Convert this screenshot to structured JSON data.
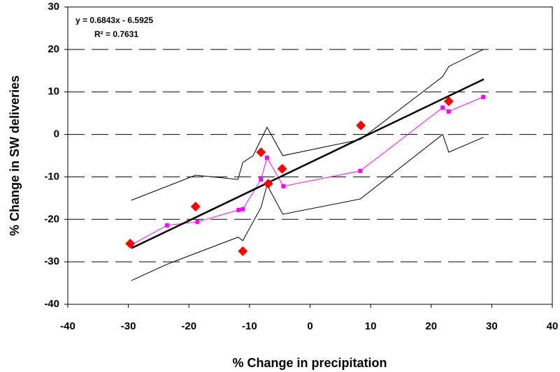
{
  "chart_data": {
    "type": "line",
    "xlabel": "% Change in precipitation",
    "ylabel": "% Change in SW deliveries",
    "annotations": [
      "y = 0.6843x - 6.5925",
      "R² = 0.7631"
    ],
    "xlim": [
      -40,
      40
    ],
    "xticks": [
      -40,
      -30,
      -20,
      -10,
      0,
      10,
      20,
      30,
      40
    ],
    "ylim": [
      -40,
      30
    ],
    "yticks": [
      -40,
      -30,
      -20,
      -10,
      0,
      10,
      20,
      30
    ],
    "grid": true,
    "series": [
      {
        "color": "#000000",
        "style": "thin",
        "x": [
          -29.5,
          -18.9,
          -11.9,
          -11.1,
          -9.4,
          -7.1,
          -4.5,
          8.3,
          21.9,
          22.9,
          28.6
        ],
        "values": [
          -15.5,
          -9.6,
          -10.6,
          -6.6,
          -5.0,
          1.7,
          -5.0,
          -1.2,
          13.6,
          16.0,
          20.0
        ]
      },
      {
        "color": "#000000",
        "style": "thin",
        "x": [
          -29.5,
          -23.5,
          -11.9,
          -11.1,
          -8.1,
          -7.1,
          -4.5,
          8.3,
          21.9,
          22.9,
          28.6
        ],
        "values": [
          -34.4,
          -30.5,
          -24.2,
          -25.0,
          -17.2,
          -11.9,
          -18.8,
          -15.2,
          0,
          -4.2,
          -0.7
        ]
      },
      {
        "color": "#ff00ff",
        "style": "square",
        "x": [
          -29.5,
          -23.6,
          -18.6,
          -11.8,
          -11.1,
          -8.1,
          -7.1,
          -4.4,
          8.3,
          21.9,
          22.9,
          28.6
        ],
        "values": [
          -26.0,
          -21.4,
          -20.6,
          -17.8,
          -17.6,
          -10.6,
          -5.5,
          -12.2,
          -8.6,
          6.3,
          5.4,
          8.8
        ]
      },
      {
        "color": "#000000",
        "style": "thick",
        "x": [
          -29.5,
          28.7
        ],
        "values": [
          -26.8,
          13.0
        ]
      },
      {
        "color": "#ff0000",
        "style": "diamond",
        "x": [
          -29.7,
          -18.9,
          -11.1,
          -8.1,
          -6.9,
          -4.6,
          8.4,
          22.9
        ],
        "values": [
          -25.7,
          -17.0,
          -27.5,
          -4.2,
          -11.6,
          -8.1,
          2.1,
          7.8
        ]
      }
    ]
  }
}
